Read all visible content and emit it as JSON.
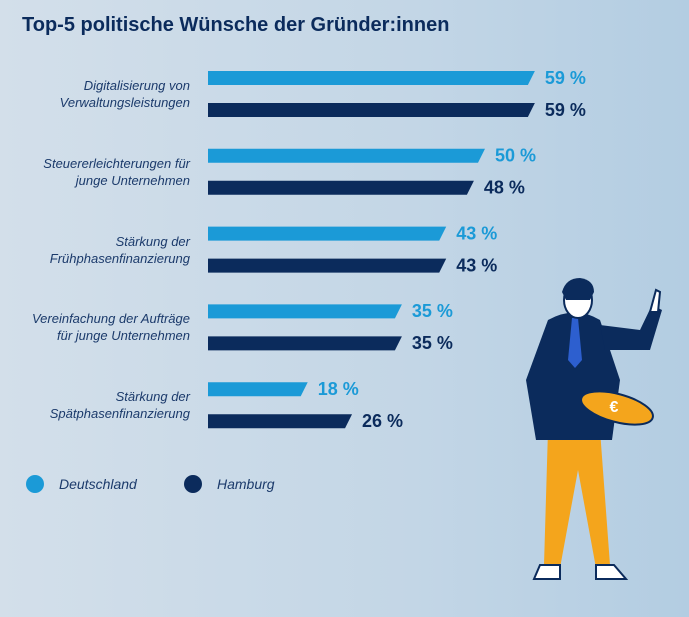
{
  "chart_data": {
    "type": "bar",
    "orientation": "horizontal",
    "title": "Top-5 politische Wünsche der Gründer:innen",
    "categories": [
      "Digitalisierung von\nVerwaltungsleistungen",
      "Steuererleichterungen für\njunge Unternehmen",
      "Stärkung der\nFrühphasenfinanzierung",
      "Vereinfachung der Aufträge\nfür junge Unternehmen",
      "Stärkung der\nSpätphasenfinanzierung"
    ],
    "series": [
      {
        "name": "Deutschland",
        "color": "#1b9ad7",
        "values": [
          59,
          50,
          43,
          35,
          18
        ],
        "value_labels": [
          "59 %",
          "50 %",
          "43 %",
          "35 %",
          "18 %"
        ]
      },
      {
        "name": "Hamburg",
        "color": "#0b2b5c",
        "values": [
          59,
          48,
          43,
          35,
          26
        ],
        "value_labels": [
          "59 %",
          "48 %",
          "43 %",
          "35 %",
          "26 %"
        ]
      }
    ]
  }
}
